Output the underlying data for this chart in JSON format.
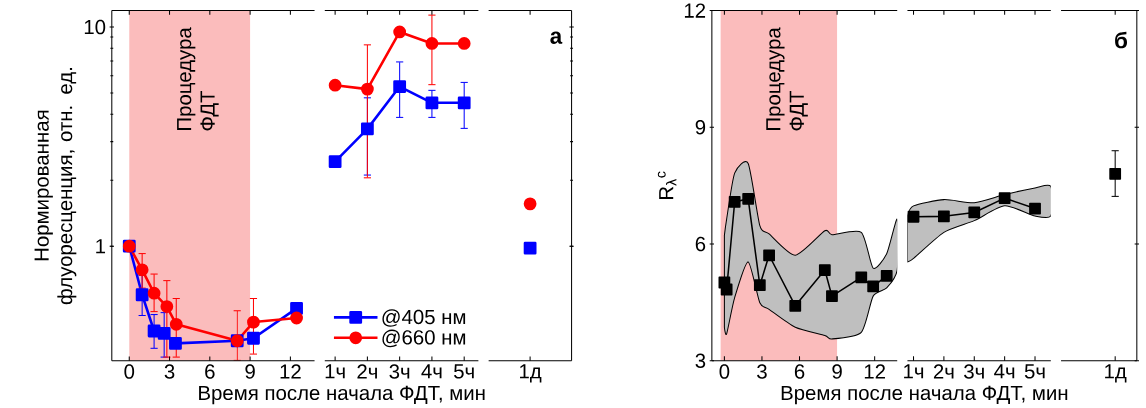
{
  "chart_data": [
    {
      "type": "line",
      "ylabel": "Нормированная флуоресценция, отн. ед.",
      "log": true,
      "xlim": [
        -1.3,
        13.8
      ],
      "ylim": [
        0.3,
        11.9
      ],
      "yticks": [
        1,
        10
      ],
      "xticks": [
        0,
        3,
        6,
        9,
        12
      ],
      "bands": [
        {
          "axis": "x",
          "from": 0,
          "to": 9,
          "label": "Процедура ФДТ",
          "color": "#fbbcbc"
        }
      ],
      "series": [
        {
          "color": "#0000ff",
          "marker": "square",
          "x": [
            0,
            0.96,
            1.85,
            2.6,
            3.44,
            8.04,
            9.25,
            12.46
          ],
          "values": [
            1.0,
            0.6,
            0.41,
            0.4,
            0.36,
            0.37,
            0.38,
            0.52
          ],
          "errors": [
            null,
            [
              0.48,
              0.74
            ],
            [
              0.34,
              0.49
            ],
            [
              0.31,
              0.5
            ],
            null,
            null,
            null,
            null
          ]
        },
        {
          "color": "#ff0000",
          "marker": "circle",
          "x": [
            0,
            0.96,
            1.85,
            2.8,
            3.5,
            8.04,
            9.25,
            12.46
          ],
          "values": [
            1.0,
            0.78,
            0.61,
            0.53,
            0.44,
            0.37,
            0.45,
            0.47
          ],
          "errors": [
            null,
            [
              0.64,
              0.93
            ],
            [
              0.5,
              0.75
            ],
            [
              0.31,
              0.7
            ],
            [
              0.31,
              0.58
            ],
            [
              0.3,
              0.51
            ],
            [
              0.32,
              0.58
            ],
            null
          ]
        }
      ]
    },
    {
      "type": "line",
      "xlabel": "Время после начала ФДТ, мин",
      "log": true,
      "xlim": [
        0.68,
        5.44
      ],
      "ylim": [
        0.3,
        11.9
      ],
      "tick_labels": "x",
      "xticks": [
        {
          "value": 1,
          "label": "1ч"
        },
        {
          "value": 2,
          "label": "2ч"
        },
        {
          "value": 3,
          "label": "3ч"
        },
        {
          "value": 4,
          "label": "4ч"
        },
        {
          "value": 5,
          "label": "5ч"
        }
      ],
      "legend": "bottom left",
      "series": [
        {
          "name": "@405 нм",
          "color": "#0000ff",
          "marker": "square",
          "x": [
            1,
            2,
            3,
            4,
            5
          ],
          "values": [
            2.43,
            3.43,
            5.35,
            4.51,
            4.51
          ],
          "errors": [
            null,
            [
              2.1,
              4.78
            ],
            [
              3.85,
              6.97
            ],
            [
              3.85,
              5.17
            ],
            [
              3.43,
              5.62
            ]
          ]
        },
        {
          "name": "@660 нм",
          "color": "#ff0000",
          "marker": "circle",
          "x": [
            1,
            2,
            3,
            4,
            5
          ],
          "values": [
            5.43,
            5.21,
            9.5,
            8.42,
            8.42
          ],
          "errors": [
            null,
            [
              2.04,
              8.34
            ],
            null,
            [
              5.43,
              11.4
            ],
            null
          ]
        }
      ]
    },
    {
      "type": "line",
      "annotations": [
        "а"
      ],
      "log": true,
      "ylim": [
        0.3,
        11.9
      ],
      "yticks": [
        1,
        10
      ],
      "tick_labels": "x",
      "categories": [
        "1д"
      ],
      "series": [
        {
          "color": "#0000ff",
          "marker": "square",
          "values": [
            0.98
          ]
        },
        {
          "color": "#ff0000",
          "marker": "circle",
          "values": [
            1.56
          ]
        }
      ]
    },
    {
      "type": "line",
      "ylabel": "R$_{λ}$$^{c}$",
      "xlim": [
        -1,
        13.8
      ],
      "ylim": [
        3,
        12
      ],
      "yticks": [
        3,
        6,
        9,
        12
      ],
      "xticks": [
        0,
        3,
        6,
        9,
        12
      ],
      "bands": [
        {
          "axis": "x",
          "from": -0.3,
          "to": 9,
          "label": "Процедура ФДТ",
          "color": "#fbbcbc"
        }
      ],
      "series": [
        {
          "color": "#000000",
          "marker": "square",
          "x": [
            0,
            0.18,
            0.82,
            1.9,
            2.83,
            3.57,
            5.66,
            8.02,
            8.59,
            10.93,
            11.88,
            12.96,
            13.8
          ],
          "values": [
            5.01,
            4.83,
            7.08,
            7.16,
            4.94,
            5.71,
            4.41,
            5.33,
            4.66,
            5.14,
            4.91,
            5.18,
            null
          ],
          "lower": [
            3.86,
            3.69,
            4.62,
            5.54,
            4.49,
            4.32,
            3.86,
            3.65,
            3.56,
            3.73,
            4.66,
            4.87,
            5.33
          ],
          "upper": [
            6.22,
            6.64,
            7.82,
            8.07,
            6.47,
            6.26,
            5.71,
            6.34,
            6.24,
            6.3,
            5.38,
            5.75,
            6.64
          ]
        }
      ]
    },
    {
      "type": "line",
      "xlabel": "Время после начала ФДТ, мин",
      "xlim": [
        0.8,
        5.52
      ],
      "ylim": [
        3,
        12
      ],
      "tick_labels": "x",
      "xticks": [
        {
          "value": 1,
          "label": "1ч"
        },
        {
          "value": 2,
          "label": "2ч"
        },
        {
          "value": 3,
          "label": "3ч"
        },
        {
          "value": 4,
          "label": "4ч"
        },
        {
          "value": 5,
          "label": "5ч"
        }
      ],
      "series": [
        {
          "color": "#000000",
          "marker": "square",
          "x": [
            0.8,
            1,
            2,
            3,
            4,
            5,
            5.52
          ],
          "values": [
            null,
            6.7,
            6.71,
            6.81,
            7.18,
            6.91,
            null
          ],
          "lower": [
            5.54,
            5.63,
            6.3,
            6.6,
            6.98,
            6.72,
            6.72
          ],
          "upper": [
            6.72,
            6.98,
            7.14,
            7.06,
            7.27,
            7.44,
            7.48
          ]
        }
      ]
    },
    {
      "type": "line",
      "annotations": [
        "б"
      ],
      "ylim": [
        3,
        12
      ],
      "yticks": [
        3,
        6,
        9,
        12
      ],
      "tick_labels": "x",
      "categories": [
        "1д"
      ],
      "series": [
        {
          "color": "#000000",
          "marker": "square",
          "values": [
            7.8
          ],
          "errors": [
            [
              7.21,
              8.41
            ]
          ]
        }
      ]
    }
  ]
}
